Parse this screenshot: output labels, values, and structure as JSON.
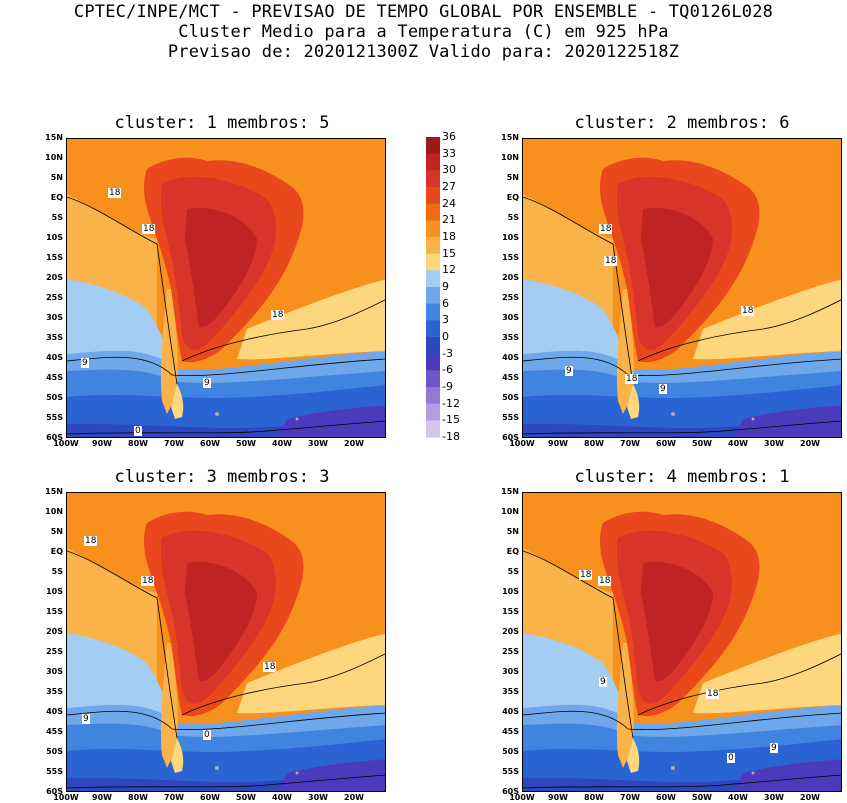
{
  "header": {
    "line1": "CPTEC/INPE/MCT - PREVISAO DE TEMPO GLOBAL POR ENSEMBLE - TQ0126L028",
    "line2": "Cluster Medio para a Temperatura (C) em 925 hPa",
    "line3": "Previsao de: 2020121300Z   Valido para: 2020122518Z"
  },
  "panels": [
    {
      "title": "cluster: 1  membros: 5",
      "contour_labels": [
        "18",
        "18",
        "18",
        "9",
        "9",
        "0"
      ]
    },
    {
      "title": "cluster: 2  membros: 6",
      "contour_labels": [
        "18",
        "18",
        "18",
        "9",
        "18",
        "9"
      ]
    },
    {
      "title": "cluster: 3  membros: 3",
      "contour_labels": [
        "18",
        "18",
        "18",
        "9",
        "0"
      ]
    },
    {
      "title": "cluster: 4  membros: 1",
      "contour_labels": [
        "18",
        "18",
        "9",
        "18",
        "9",
        "0"
      ]
    }
  ],
  "lat_labels": [
    "15N",
    "10N",
    "5N",
    "EQ",
    "5S",
    "10S",
    "15S",
    "20S",
    "25S",
    "30S",
    "35S",
    "40S",
    "45S",
    "50S",
    "55S",
    "60S"
  ],
  "lon_labels": [
    "100W",
    "90W",
    "80W",
    "70W",
    "60W",
    "50W",
    "40W",
    "30W",
    "20W"
  ],
  "colorbar": {
    "labels": [
      "36",
      "33",
      "30",
      "27",
      "24",
      "21",
      "18",
      "15",
      "12",
      "9",
      "6",
      "3",
      "0",
      "-3",
      "-6",
      "-9",
      "-12",
      "-15",
      "-18"
    ],
    "colors": [
      "#9e1a1a",
      "#c02323",
      "#d8352a",
      "#e8481c",
      "#f16a16",
      "#f7901c",
      "#f9b348",
      "#fcd77e",
      "#a4cdf4",
      "#6fa8ea",
      "#3f85e0",
      "#2a64d2",
      "#2e46be",
      "#4b3bbc",
      "#6e55c9",
      "#8f7ad6",
      "#b09fe2",
      "#d2c6ee"
    ]
  }
}
